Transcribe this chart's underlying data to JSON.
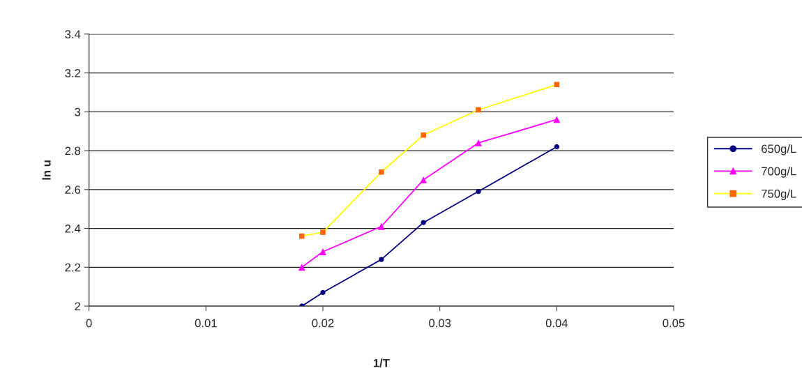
{
  "chart_data": {
    "type": "line",
    "xlabel": "1/T",
    "ylabel": "ln u",
    "xlim": [
      0,
      0.05
    ],
    "xticks": [
      0,
      0.01,
      0.02,
      0.03,
      0.04,
      0.05
    ],
    "ylim": [
      2,
      3.4
    ],
    "yticks": [
      2,
      2.2,
      2.4,
      2.6,
      2.8,
      3,
      3.2,
      3.4
    ],
    "grid": "y",
    "legend": "right",
    "line_style": "solid",
    "series": [
      {
        "name": "650g/L",
        "color": "#000080",
        "marker": "circle",
        "x": [
          0.0182,
          0.02,
          0.025,
          0.0286,
          0.0333,
          0.04
        ],
        "values": [
          2.0,
          2.07,
          2.24,
          2.43,
          2.59,
          2.82
        ]
      },
      {
        "name": "700g/L",
        "color": "#ff00ff",
        "marker": "triangle",
        "x": [
          0.0182,
          0.02,
          0.025,
          0.0286,
          0.0333,
          0.04
        ],
        "values": [
          2.2,
          2.28,
          2.41,
          2.65,
          2.84,
          2.96
        ]
      },
      {
        "name": "750g/L",
        "color": "#ffff00",
        "colors": [
          "#ff6600",
          "#ff6600",
          "#ff6600",
          "#ff6600",
          "#ff6600",
          "#ff6600"
        ],
        "marker": "square",
        "x": [
          0.0182,
          0.02,
          0.025,
          0.0286,
          0.0333,
          0.04
        ],
        "values": [
          2.36,
          2.38,
          2.69,
          2.88,
          3.01,
          3.14
        ]
      }
    ]
  }
}
